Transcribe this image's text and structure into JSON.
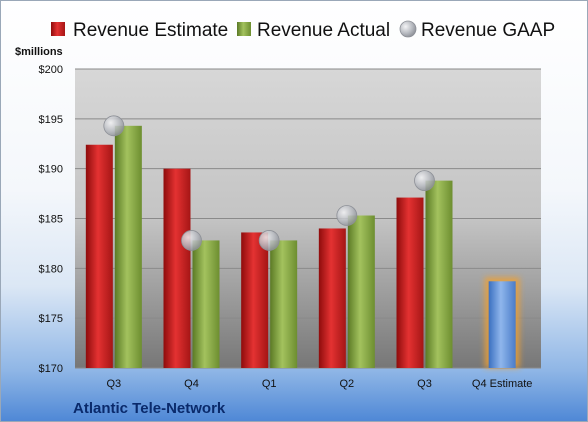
{
  "chart_data": {
    "type": "bar",
    "categories": [
      "Q3",
      "Q4",
      "Q1",
      "Q2",
      "Q3",
      "Q4 Estimate"
    ],
    "series": [
      {
        "name": "Revenue Estimate",
        "color": "#d42020",
        "values": [
          192.4,
          190.0,
          183.6,
          184.0,
          187.1,
          null
        ]
      },
      {
        "name": "Revenue Actual",
        "color": "#86a845",
        "values": [
          194.3,
          182.8,
          182.8,
          185.3,
          188.8,
          null
        ]
      },
      {
        "name": "Revenue GAAP",
        "color": "#b9bcc2",
        "marker": "circle",
        "values": [
          194.3,
          182.8,
          182.8,
          185.3,
          188.8,
          null
        ]
      }
    ],
    "forecast": {
      "category": "Q4 Estimate",
      "value": 178.7,
      "color": "#5b8fd6",
      "glow": "#f0a030"
    },
    "ylabel": "$millions",
    "ylim": [
      170,
      200
    ],
    "yticks": [
      "$170",
      "$175",
      "$180",
      "$185",
      "$190",
      "$195",
      "$200"
    ],
    "ytick_values": [
      170,
      175,
      180,
      185,
      190,
      195,
      200
    ],
    "grid": true,
    "legend": "top",
    "footer": "Atlantic Tele-Network"
  }
}
